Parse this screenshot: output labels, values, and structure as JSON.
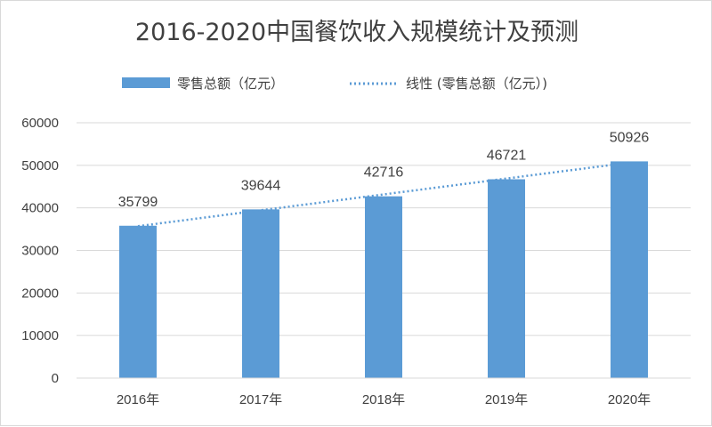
{
  "chart_data": {
    "type": "bar",
    "title": "2016-2020中国餐饮收入规模统计及预测",
    "categories": [
      "2016年",
      "2017年",
      "2018年",
      "2019年",
      "2020年"
    ],
    "series": [
      {
        "name": "零售总额（亿元）",
        "values": [
          35799,
          39644,
          42716,
          46721,
          50926
        ],
        "color": "#5b9bd5"
      }
    ],
    "trendline": {
      "name": "线性 (零售总额（亿元）)",
      "type": "linear",
      "color": "#5b9bd5",
      "style": "dotted"
    },
    "ylim": [
      0,
      60000
    ],
    "yticks": [
      0,
      10000,
      20000,
      30000,
      40000,
      50000,
      60000
    ],
    "xlabel": "",
    "ylabel": "",
    "grid": true,
    "legend_position": "top",
    "data_labels": true
  }
}
